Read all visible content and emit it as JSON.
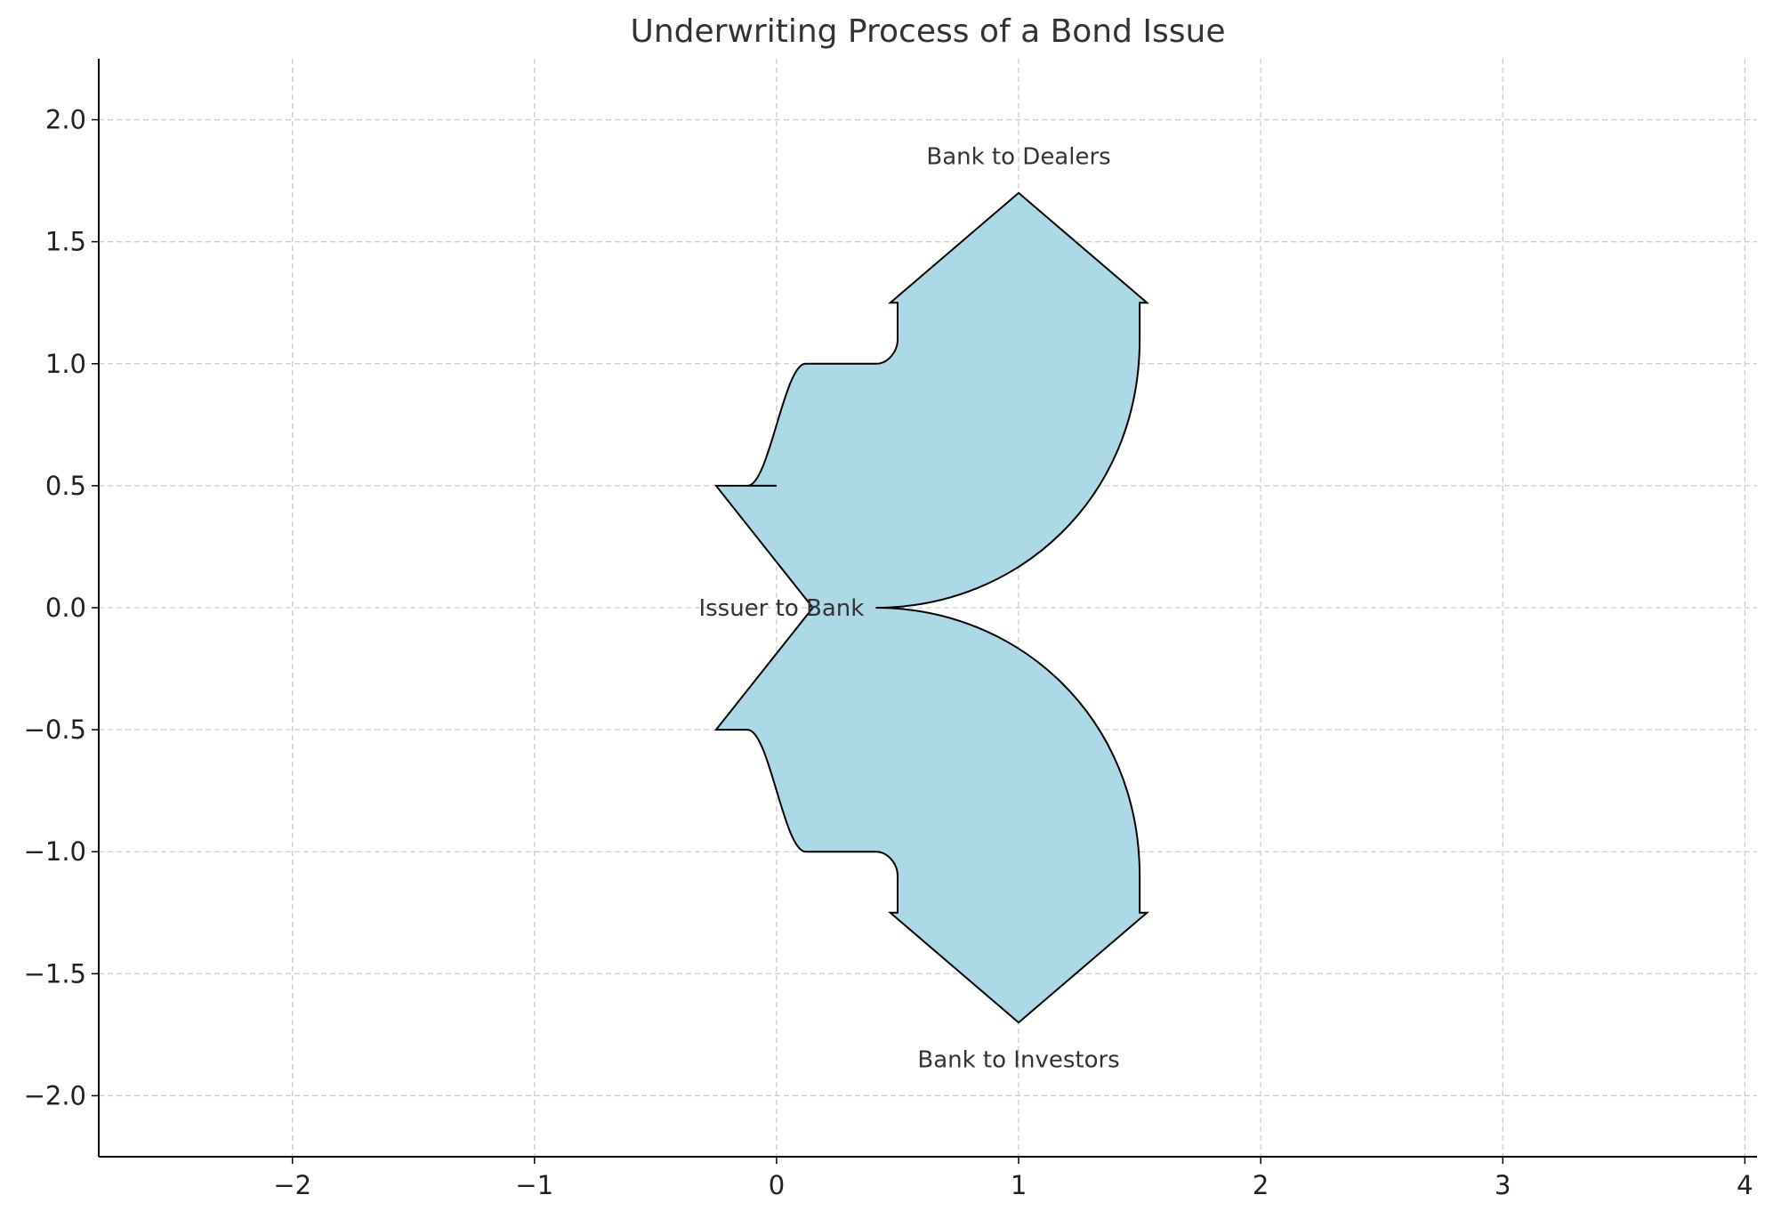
{
  "chart_data": {
    "type": "sankey",
    "title": "Underwriting Process of a Bond Issue",
    "xlabel": "",
    "ylabel": "",
    "xlim": [
      -2.8,
      4.05
    ],
    "ylim": [
      -2.25,
      2.25
    ],
    "xticks": [
      -2,
      -1,
      0,
      1,
      2,
      3,
      4
    ],
    "yticks": [
      -2.0,
      -1.5,
      -1.0,
      -0.5,
      0.0,
      0.5,
      1.0,
      1.5,
      2.0
    ],
    "xtick_labels": [
      "−2",
      "−1",
      "0",
      "1",
      "2",
      "3",
      "4"
    ],
    "ytick_labels": [
      "−2.0",
      "−1.5",
      "−1.0",
      "−0.5",
      "0.0",
      "0.5",
      "1.0",
      "1.5",
      "2.0"
    ],
    "grid": true,
    "fill_color": "#add8e6",
    "edge_color": "#000000",
    "flows": [
      {
        "label": "Issuer to Bank",
        "value": 1,
        "direction": "in",
        "label_position": [
          0.02,
          0.0
        ]
      },
      {
        "label": "Bank to Dealers",
        "value": -0.5,
        "direction": "up",
        "label_position": [
          1.0,
          1.85
        ]
      },
      {
        "label": "Bank to Investors",
        "value": -0.5,
        "direction": "down",
        "label_position": [
          1.0,
          -1.85
        ]
      }
    ]
  }
}
